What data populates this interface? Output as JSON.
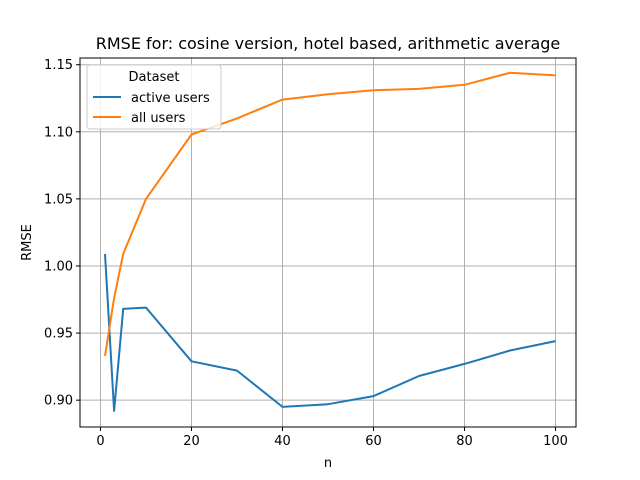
{
  "chart_data": {
    "type": "line",
    "title": "RMSE for: cosine version, hotel based, arithmetic average",
    "xlabel": "n",
    "ylabel": "RMSE",
    "xlim": [
      -4.5,
      104.5
    ],
    "ylim": [
      0.88,
      1.155
    ],
    "xticks": [
      0,
      20,
      40,
      60,
      80,
      100
    ],
    "xtick_labels": [
      "0",
      "20",
      "40",
      "60",
      "80",
      "100"
    ],
    "yticks": [
      0.9,
      0.95,
      1.0,
      1.05,
      1.1,
      1.15
    ],
    "ytick_labels": [
      "0.90",
      "0.95",
      "1.00",
      "1.05",
      "1.10",
      "1.15"
    ],
    "grid": true,
    "legend": {
      "title": "Dataset",
      "placement": "top-left"
    },
    "series": [
      {
        "name": "active users",
        "color": "#1f77b4",
        "x": [
          1,
          3,
          5,
          10,
          20,
          30,
          40,
          50,
          60,
          70,
          80,
          90,
          100
        ],
        "y": [
          1.009,
          0.892,
          0.968,
          0.969,
          0.929,
          0.922,
          0.895,
          0.897,
          0.903,
          0.918,
          0.927,
          0.937,
          0.944
        ]
      },
      {
        "name": "all users",
        "color": "#ff7f0e",
        "x": [
          1,
          3,
          5,
          10,
          20,
          30,
          40,
          50,
          60,
          70,
          80,
          90,
          100
        ],
        "y": [
          0.933,
          0.976,
          1.009,
          1.05,
          1.098,
          1.11,
          1.124,
          1.128,
          1.131,
          1.132,
          1.135,
          1.144,
          1.142
        ]
      }
    ]
  }
}
